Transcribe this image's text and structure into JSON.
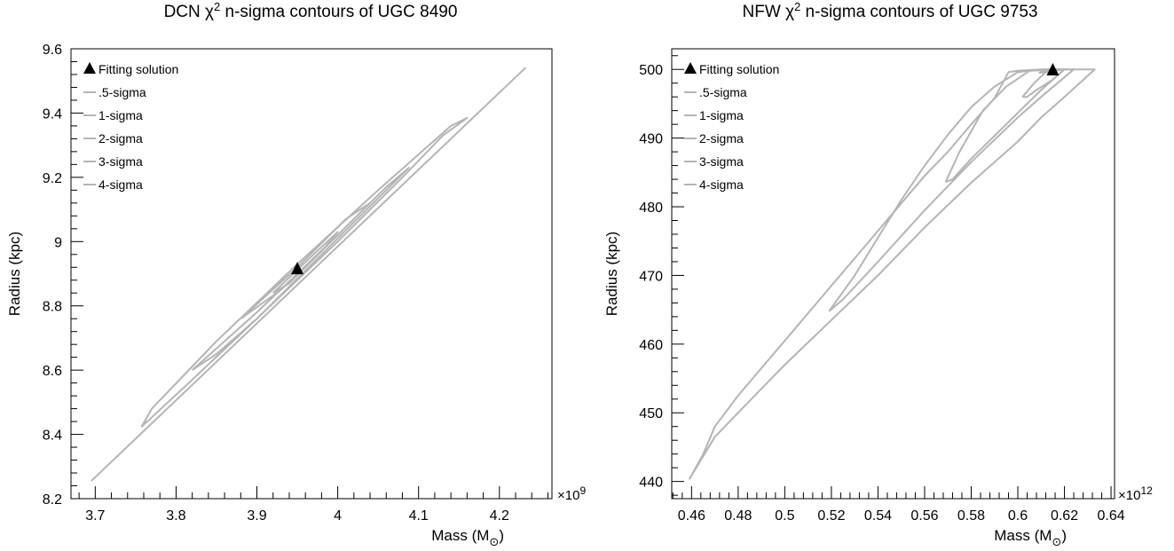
{
  "colors": {
    "contour": "#b4b4b4",
    "marker": "#000000",
    "axis": "#000000",
    "background": "#ffffff"
  },
  "chart_data": [
    {
      "type": "contour",
      "title": "DCN χ² n-sigma contours of UGC 8490",
      "title_parts": {
        "prefix": "DCN χ",
        "sup": "2",
        "suffix": " n-sigma contours of UGC 8490"
      },
      "xlabel": "Mass (M",
      "xlabel_sub": "⊙",
      "xlabel_close": ")",
      "ylabel": "Radius (kpc)",
      "x_multiplier": "×10",
      "x_multiplier_exp": "9",
      "xlim": [
        3.67,
        4.265
      ],
      "ylim": [
        8.2,
        9.6
      ],
      "x_major_ticks": [
        3.7,
        3.8,
        3.9,
        4.0,
        4.1,
        4.2
      ],
      "x_tick_labels": [
        "3.7",
        "3.8",
        "3.9",
        "4",
        "4.1",
        "4.2"
      ],
      "y_major_ticks": [
        8.2,
        8.4,
        8.6,
        8.8,
        9.0,
        9.2,
        9.4,
        9.6
      ],
      "y_tick_labels": [
        "8.2",
        "8.4",
        "8.6",
        "8.8",
        "9",
        "9.2",
        "9.4",
        "9.6"
      ],
      "legend_position": "top-left",
      "legend": [
        {
          "label": "Fitting solution",
          "symbol": "triangle"
        },
        {
          "label": ".5-sigma",
          "symbol": "line"
        },
        {
          "label": "1-sigma",
          "symbol": "line"
        },
        {
          "label": "2-sigma",
          "symbol": "line"
        },
        {
          "label": "3-sigma",
          "symbol": "line"
        },
        {
          "label": "4-sigma",
          "symbol": "line"
        }
      ],
      "fitting_solution": {
        "x": 3.95,
        "y": 8.915
      },
      "contours": [
        {
          "name": "4-sigma",
          "points": [
            [
              3.695,
              8.255
            ],
            [
              4.232,
              9.54
            ],
            [
              3.695,
              8.255
            ]
          ]
        },
        {
          "name": "3-sigma",
          "points": [
            [
              3.757,
              8.423
            ],
            [
              3.82,
              8.57
            ],
            [
              3.9,
              8.76
            ],
            [
              4.0,
              9.0
            ],
            [
              4.08,
              9.2
            ],
            [
              4.13,
              9.33
            ],
            [
              4.16,
              9.385
            ],
            [
              4.14,
              9.36
            ],
            [
              4.05,
              9.16
            ],
            [
              3.95,
              8.93
            ],
            [
              3.85,
              8.69
            ],
            [
              3.77,
              8.48
            ],
            [
              3.757,
              8.423
            ]
          ]
        },
        {
          "name": "2-sigma",
          "points": [
            [
              3.82,
              8.6
            ],
            [
              3.9,
              8.78
            ],
            [
              4.0,
              9.02
            ],
            [
              4.06,
              9.17
            ],
            [
              4.088,
              9.23
            ],
            [
              4.06,
              9.16
            ],
            [
              3.98,
              8.96
            ],
            [
              3.9,
              8.76
            ],
            [
              3.85,
              8.65
            ],
            [
              3.82,
              8.6
            ]
          ]
        },
        {
          "name": "1-sigma",
          "points": [
            [
              3.88,
              8.76
            ],
            [
              3.95,
              8.92
            ],
            [
              4.01,
              9.07
            ],
            [
              4.04,
              9.12
            ],
            [
              4.0,
              9.02
            ],
            [
              3.93,
              8.85
            ],
            [
              3.88,
              8.76
            ]
          ]
        },
        {
          "name": ".5-sigma",
          "points": [
            [
              3.92,
              8.84
            ],
            [
              3.97,
              8.96
            ],
            [
              4.0,
              9.03
            ],
            [
              3.98,
              8.97
            ],
            [
              3.94,
              8.87
            ],
            [
              3.92,
              8.84
            ]
          ]
        }
      ]
    },
    {
      "type": "contour",
      "title": "NFW χ² n-sigma contours of UGC 9753",
      "title_parts": {
        "prefix": "NFW χ",
        "sup": "2",
        "suffix": " n-sigma contours of UGC 9753"
      },
      "xlabel": "Mass (M",
      "xlabel_sub": "⊙",
      "xlabel_close": ")",
      "ylabel": "Radius (kpc)",
      "x_multiplier": "×10",
      "x_multiplier_exp": "12",
      "xlim": [
        0.4515,
        0.6415
      ],
      "ylim": [
        437.5,
        503.0
      ],
      "x_major_ticks": [
        0.46,
        0.48,
        0.5,
        0.52,
        0.54,
        0.56,
        0.58,
        0.6,
        0.62,
        0.64
      ],
      "x_tick_labels": [
        "0.46",
        "0.48",
        "0.5",
        "0.52",
        "0.54",
        "0.56",
        "0.58",
        "0.6",
        "0.62",
        "0.64"
      ],
      "y_major_ticks": [
        440,
        450,
        460,
        470,
        480,
        490,
        500
      ],
      "y_tick_labels": [
        "440",
        "450",
        "460",
        "470",
        "480",
        "490",
        "500"
      ],
      "legend_position": "top-left",
      "legend": [
        {
          "label": "Fitting solution",
          "symbol": "triangle"
        },
        {
          "label": ".5-sigma",
          "symbol": "line"
        },
        {
          "label": "1-sigma",
          "symbol": "line"
        },
        {
          "label": "2-sigma",
          "symbol": "line"
        },
        {
          "label": "3-sigma",
          "symbol": "line"
        },
        {
          "label": "4-sigma",
          "symbol": "line"
        }
      ],
      "fitting_solution": {
        "x": 0.615,
        "y": 499.9
      },
      "contours": [
        {
          "name": "4-sigma",
          "points": [
            [
              0.459,
              440.3
            ],
            [
              0.465,
              444.0
            ],
            [
              0.47,
              448.0
            ],
            [
              0.48,
              452.5
            ],
            [
              0.49,
              456.5
            ],
            [
              0.5,
              460.5
            ],
            [
              0.51,
              464.5
            ],
            [
              0.52,
              468.5
            ],
            [
              0.53,
              472.5
            ],
            [
              0.54,
              476.5
            ],
            [
              0.55,
              480.5
            ],
            [
              0.56,
              484.5
            ],
            [
              0.57,
              488.0
            ],
            [
              0.58,
              492.0
            ],
            [
              0.59,
              495.8
            ],
            [
              0.596,
              499.6
            ],
            [
              0.6,
              499.8
            ],
            [
              0.61,
              500.0
            ],
            [
              0.625,
              500.0
            ],
            [
              0.633,
              500.0
            ],
            [
              0.62,
              496.0
            ],
            [
              0.61,
              493.0
            ],
            [
              0.6,
              489.5
            ],
            [
              0.58,
              483.5
            ],
            [
              0.56,
              477.0
            ],
            [
              0.54,
              470.0
            ],
            [
              0.52,
              463.5
            ],
            [
              0.5,
              457.0
            ],
            [
              0.48,
              450.0
            ],
            [
              0.47,
              446.5
            ],
            [
              0.459,
              440.3
            ]
          ]
        },
        {
          "name": "3-sigma",
          "points": [
            [
              0.519,
              464.8
            ],
            [
              0.53,
              470.0
            ],
            [
              0.54,
              475.5
            ],
            [
              0.55,
              481.0
            ],
            [
              0.56,
              486.0
            ],
            [
              0.57,
              490.5
            ],
            [
              0.58,
              494.5
            ],
            [
              0.59,
              497.5
            ],
            [
              0.6,
              499.6
            ],
            [
              0.61,
              500.0
            ],
            [
              0.624,
              500.0
            ],
            [
              0.61,
              496.0
            ],
            [
              0.6,
              493.0
            ],
            [
              0.58,
              486.5
            ],
            [
              0.56,
              479.5
            ],
            [
              0.54,
              472.0
            ],
            [
              0.525,
              466.5
            ],
            [
              0.519,
              464.8
            ]
          ]
        },
        {
          "name": "2-sigma",
          "points": [
            [
              0.569,
              483.6
            ],
            [
              0.575,
              488.0
            ],
            [
              0.585,
              494.0
            ],
            [
              0.595,
              497.5
            ],
            [
              0.605,
              499.8
            ],
            [
              0.62,
              500.0
            ],
            [
              0.61,
              497.0
            ],
            [
              0.595,
              492.0
            ],
            [
              0.58,
              487.0
            ],
            [
              0.572,
              484.0
            ],
            [
              0.569,
              483.6
            ]
          ]
        },
        {
          "name": "1-sigma",
          "points": [
            [
              0.602,
              496.0
            ],
            [
              0.607,
              498.0
            ],
            [
              0.612,
              499.6
            ],
            [
              0.62,
              500.0
            ],
            [
              0.615,
              498.5
            ],
            [
              0.608,
              497.0
            ],
            [
              0.604,
              496.0
            ],
            [
              0.602,
              496.0
            ]
          ]
        },
        {
          "name": ".5-sigma",
          "points": [
            [
              0.609,
              499.5
            ],
            [
              0.614,
              500.0
            ],
            [
              0.619,
              500.0
            ],
            [
              0.615,
              499.7
            ],
            [
              0.609,
              499.5
            ]
          ]
        }
      ]
    }
  ]
}
